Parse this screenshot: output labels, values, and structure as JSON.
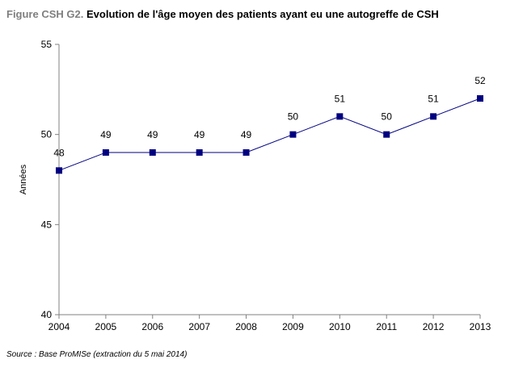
{
  "figure": {
    "prefix": "Figure CSH G2.",
    "title": "Evolution de l'âge moyen des patients ayant eu une autogreffe de CSH",
    "source": "Source : Base ProMISe (extraction du 5 mai 2014)"
  },
  "chart_data": {
    "type": "line",
    "title": "Evolution de l'âge moyen des patients ayant eu une autogreffe de CSH",
    "xlabel": "",
    "ylabel": "Années",
    "categories": [
      "2004",
      "2005",
      "2006",
      "2007",
      "2008",
      "2009",
      "2010",
      "2011",
      "2012",
      "2013"
    ],
    "series": [
      {
        "values": [
          48,
          49,
          49,
          49,
          49,
          50,
          51,
          50,
          51,
          52
        ],
        "color": "#000080",
        "marker": "square",
        "data_labels": true
      }
    ],
    "ylim": [
      40,
      55
    ],
    "yticks": [
      40,
      45,
      50,
      55
    ],
    "grid": false,
    "legend": "none",
    "axis_color": "#808080",
    "line_color": "#000080"
  }
}
